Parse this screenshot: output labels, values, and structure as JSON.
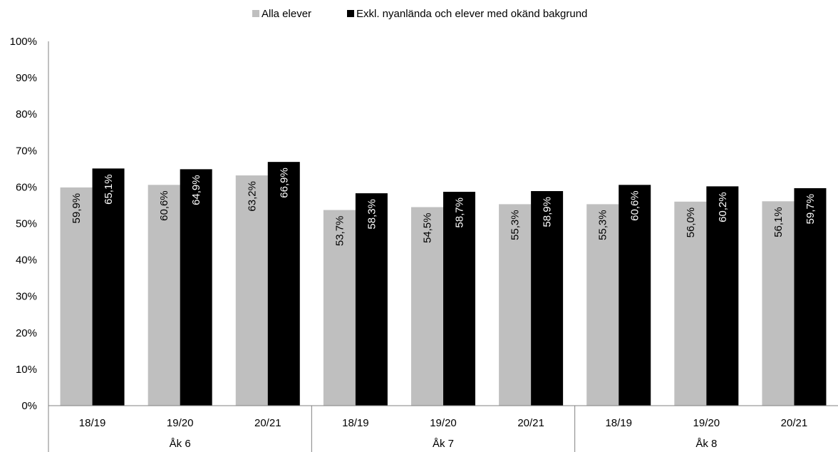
{
  "chart_data": {
    "type": "bar",
    "groups": [
      {
        "name": "Åk 6",
        "categories": [
          "18/19",
          "19/20",
          "20/21"
        ]
      },
      {
        "name": "Åk 7",
        "categories": [
          "18/19",
          "19/20",
          "20/21"
        ]
      },
      {
        "name": "Åk 8",
        "categories": [
          "18/19",
          "19/20",
          "20/21"
        ]
      }
    ],
    "series": [
      {
        "name": "Alla elever",
        "color": "#bfbfbf",
        "values": [
          59.9,
          60.6,
          63.2,
          53.7,
          54.5,
          55.3,
          55.3,
          56.0,
          56.1
        ],
        "labels": [
          "59,9%",
          "60,6%",
          "63,2%",
          "53,7%",
          "54,5%",
          "55,3%",
          "55,3%",
          "56,0%",
          "56,1%"
        ]
      },
      {
        "name": "Exkl. nyanlända och elever med okänd bakgrund",
        "color": "#000000",
        "values": [
          65.1,
          64.9,
          66.9,
          58.3,
          58.7,
          58.9,
          60.6,
          60.2,
          59.7
        ],
        "labels": [
          "65,1%",
          "64,9%",
          "66,9%",
          "58,3%",
          "58,7%",
          "58,9%",
          "60,6%",
          "60,2%",
          "59,7%"
        ]
      }
    ],
    "y_ticks": [
      "0%",
      "10%",
      "20%",
      "30%",
      "40%",
      "50%",
      "60%",
      "70%",
      "80%",
      "90%",
      "100%"
    ],
    "ylim": [
      0,
      100
    ],
    "title": "",
    "xlabel": "",
    "ylabel": "",
    "grid": false,
    "legend_position": "top-center"
  }
}
